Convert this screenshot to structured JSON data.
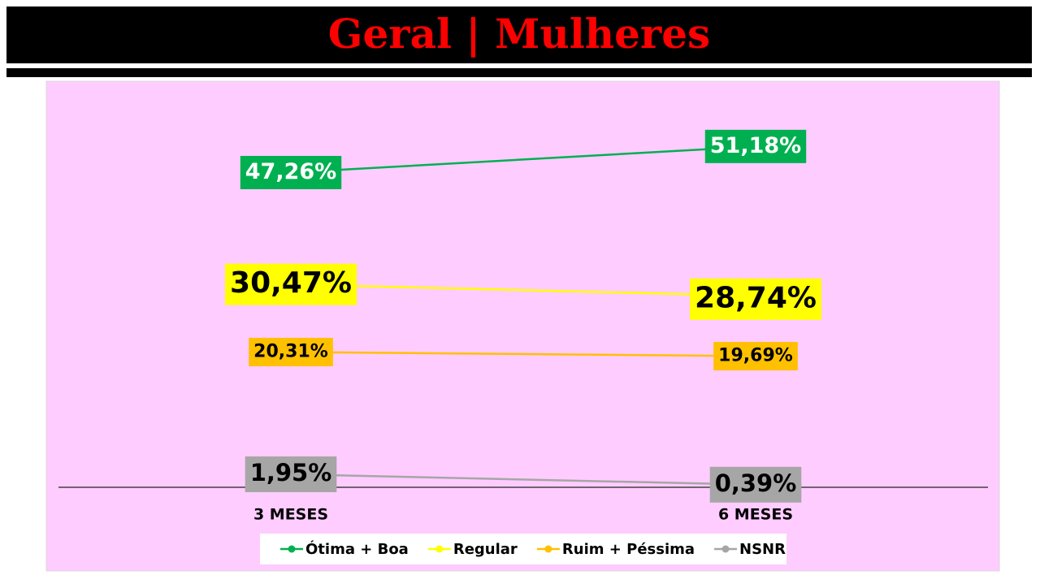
{
  "chart_data": {
    "type": "line",
    "title": "Geral | Mulheres",
    "categories": [
      "3 MESES",
      "6 MESES"
    ],
    "series": [
      {
        "name": "Ótima + Boa",
        "color": "#00b050",
        "values": [
          47.26,
          51.18
        ],
        "value_labels": [
          "47,26%",
          "51,18%"
        ]
      },
      {
        "name": "Regular",
        "color": "#ffff00",
        "values": [
          30.47,
          28.74
        ],
        "value_labels": [
          "30,47%",
          "28,74%"
        ]
      },
      {
        "name": "Ruim + Péssima",
        "color": "#ffc000",
        "values": [
          20.31,
          19.69
        ],
        "value_labels": [
          "20,31%",
          "19,69%"
        ]
      },
      {
        "name": "NSNR",
        "color": "#a6a6a6",
        "values": [
          1.95,
          0.39
        ],
        "value_labels": [
          "1,95%",
          "0,39%"
        ]
      }
    ],
    "ylim": [
      0,
      60
    ]
  }
}
